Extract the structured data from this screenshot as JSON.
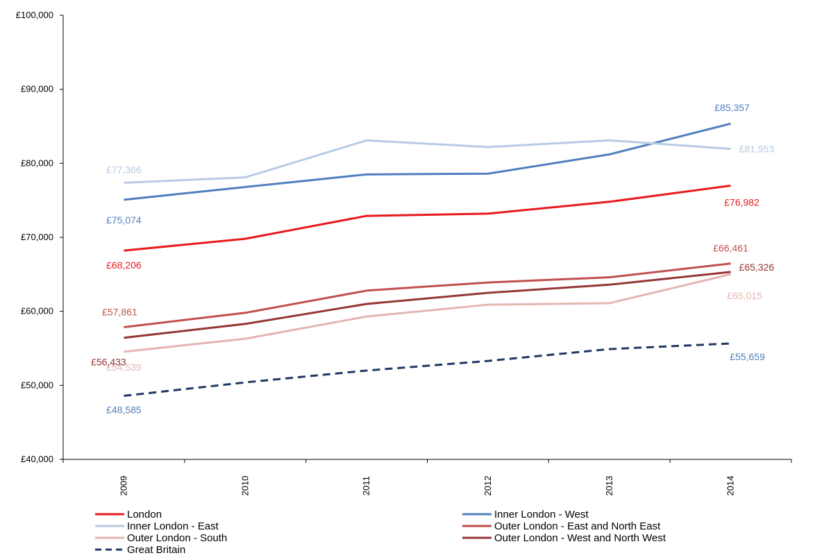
{
  "chart_data": {
    "type": "line",
    "title": "",
    "xlabel": "",
    "ylabel": "",
    "x": [
      "2009",
      "2010",
      "2011",
      "2012",
      "2013",
      "2014"
    ],
    "ylim": [
      40000,
      100000
    ],
    "y_ticks": [
      40000,
      50000,
      60000,
      70000,
      80000,
      90000,
      100000
    ],
    "y_tick_labels": [
      "£40,000",
      "£50,000",
      "£60,000",
      "£70,000",
      "£80,000",
      "£90,000",
      "£100,000"
    ],
    "grid": false,
    "legend_position": "bottom",
    "series": [
      {
        "name": "London",
        "color": "#e8191e",
        "dashed": false,
        "values": [
          68206,
          69800,
          72900,
          73200,
          74800,
          76982
        ],
        "start_label": "£68,206",
        "end_label": "£76,982"
      },
      {
        "name": "Inner London - West",
        "color": "#4f7fbe",
        "dashed": false,
        "values": [
          75074,
          76800,
          78500,
          78600,
          81200,
          85357
        ],
        "start_label": "£75,074",
        "end_label": "£85,357"
      },
      {
        "name": "Inner London - East",
        "color": "#b7cbe4",
        "dashed": false,
        "values": [
          77366,
          78100,
          83100,
          82200,
          83100,
          81953
        ],
        "start_label": "£77,366",
        "end_label": "£81,953"
      },
      {
        "name": "Outer London - East and North East",
        "color": "#c0504d",
        "dashed": false,
        "values": [
          57861,
          59800,
          62800,
          63900,
          64600,
          66461
        ],
        "start_label": "£57,861",
        "end_label": "£66,461"
      },
      {
        "name": "Outer London - South",
        "color": "#e4b5b3",
        "dashed": false,
        "values": [
          54539,
          56300,
          59300,
          60900,
          61100,
          65015
        ],
        "start_label": "£54,539",
        "end_label": "£65,015"
      },
      {
        "name": "Outer London - West and North West",
        "color": "#943634",
        "dashed": false,
        "values": [
          56433,
          58300,
          61000,
          62500,
          63600,
          65326
        ],
        "start_label": "£56,433",
        "end_label": "£65,326"
      },
      {
        "name": "Great Britain",
        "color": "#1f3864",
        "dashed": true,
        "values": [
          48585,
          50400,
          52000,
          53300,
          54900,
          55659
        ],
        "start_label": "£48,585",
        "end_label": "£55,659",
        "label_color": "#4f7fbe"
      }
    ]
  }
}
